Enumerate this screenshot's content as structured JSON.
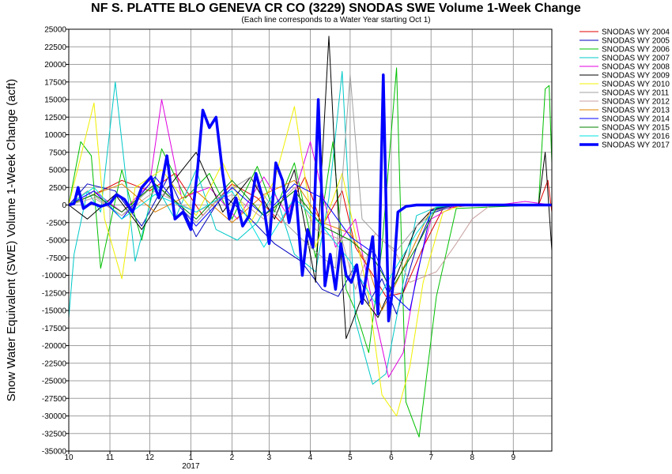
{
  "chart_data": {
    "type": "line",
    "title": "NF S. PLATTE BLO GENEVA CR CO (3229) SNODAS SWE Volume 1-Week Change",
    "subtitle": "(Each line corresponds to a Water Year starting Oct 1)",
    "ylabel": "Snow Water Equivalent (SWE) Volume 1-Week Change (acft)",
    "xlabel": "",
    "ylim": [
      -35000,
      25000
    ],
    "yticks": [
      25000,
      22500,
      20000,
      17500,
      15000,
      12500,
      10000,
      7500,
      5000,
      2500,
      0,
      -2500,
      -5000,
      -7500,
      -10000,
      -12500,
      -15000,
      -17500,
      -20000,
      -22500,
      -25000,
      -27500,
      -30000,
      -32500,
      -35000
    ],
    "xlim": [
      "2016-10-01",
      "2017-09-30"
    ],
    "x_ticks": [
      {
        "label": "10",
        "date": "2016-10-01"
      },
      {
        "label": "11",
        "date": "2016-11-01"
      },
      {
        "label": "12",
        "date": "2016-12-01"
      },
      {
        "label": "1",
        "date": "2017-01-01"
      },
      {
        "label": "2",
        "date": "2017-02-01"
      },
      {
        "label": "3",
        "date": "2017-03-01"
      },
      {
        "label": "4",
        "date": "2017-04-01"
      },
      {
        "label": "5",
        "date": "2017-05-01"
      },
      {
        "label": "6",
        "date": "2017-06-01"
      },
      {
        "label": "7",
        "date": "2017-07-01"
      },
      {
        "label": "8",
        "date": "2017-08-01"
      },
      {
        "label": "9",
        "date": "2017-09-01"
      }
    ],
    "year_label": "2017",
    "grid": true,
    "legend_position": "right",
    "series": [
      {
        "name": "SNODAS WY 2004",
        "color": "#e00000",
        "width": 1,
        "x": [
          "2016-10-01",
          "2016-10-20",
          "2016-11-10",
          "2016-12-01",
          "2016-12-20",
          "2017-01-10",
          "2017-02-01",
          "2017-02-20",
          "2017-03-10",
          "2017-03-28",
          "2017-04-10",
          "2017-04-25",
          "2017-05-05",
          "2017-05-15",
          "2017-05-28",
          "2017-06-10",
          "2017-06-25",
          "2017-07-10",
          "2017-08-01",
          "2017-09-20",
          "2017-09-27",
          "2017-09-30"
        ],
        "y": [
          0,
          1500,
          3500,
          2000,
          4500,
          -1500,
          3000,
          1000,
          -2500,
          4000,
          -3000,
          2000,
          -6000,
          -9000,
          -13000,
          -12500,
          -6000,
          -500,
          0,
          0,
          3500,
          -1000
        ]
      },
      {
        "name": "SNODAS WY 2005",
        "color": "#0000c0",
        "width": 1,
        "x": [
          "2016-10-01",
          "2016-10-15",
          "2016-11-05",
          "2016-11-25",
          "2016-12-15",
          "2017-01-05",
          "2017-01-25",
          "2017-02-15",
          "2017-03-05",
          "2017-03-25",
          "2017-04-10",
          "2017-04-22",
          "2017-05-05",
          "2017-05-15",
          "2017-05-25",
          "2017-06-05",
          "2017-06-20",
          "2017-07-01",
          "2017-07-20",
          "2017-09-30"
        ],
        "y": [
          0,
          3000,
          2000,
          -3000,
          4000,
          -4500,
          1500,
          -2000,
          -5500,
          -8000,
          -12000,
          -13000,
          -8500,
          -14000,
          -10500,
          -15500,
          -6000,
          -1200,
          0,
          0
        ]
      },
      {
        "name": "SNODAS WY 2006",
        "color": "#00c000",
        "width": 1,
        "x": [
          "2016-10-01",
          "2016-10-10",
          "2016-10-18",
          "2016-10-25",
          "2016-11-10",
          "2016-11-25",
          "2016-12-10",
          "2016-12-28",
          "2017-01-15",
          "2017-02-01",
          "2017-02-20",
          "2017-03-05",
          "2017-03-20",
          "2017-04-05",
          "2017-04-18",
          "2017-04-28",
          "2017-05-05",
          "2017-05-15",
          "2017-05-25",
          "2017-06-05",
          "2017-06-12",
          "2017-06-22",
          "2017-07-05",
          "2017-07-20",
          "2017-09-20",
          "2017-09-25",
          "2017-09-28",
          "2017-09-30"
        ],
        "y": [
          0,
          9000,
          7000,
          -9000,
          5000,
          -5000,
          8000,
          1000,
          4500,
          -2000,
          5500,
          -1000,
          6000,
          -7500,
          9000,
          -12000,
          -15000,
          -21000,
          -6000,
          19500,
          -28000,
          -33000,
          -13000,
          -500,
          0,
          16500,
          17000,
          6000
        ]
      },
      {
        "name": "SNODAS WY 2007",
        "color": "#00c8c8",
        "width": 1,
        "x": [
          "2016-10-01",
          "2016-10-05",
          "2016-10-15",
          "2016-10-25",
          "2016-11-05",
          "2016-11-20",
          "2016-12-05",
          "2016-12-20",
          "2017-01-05",
          "2017-01-20",
          "2017-02-05",
          "2017-02-20",
          "2017-03-05",
          "2017-03-20",
          "2017-04-05",
          "2017-04-15",
          "2017-04-25",
          "2017-05-05",
          "2017-05-18",
          "2017-05-28",
          "2017-06-08",
          "2017-06-20",
          "2017-07-05",
          "2017-07-25",
          "2017-09-30"
        ],
        "y": [
          -16000,
          -7000,
          2000,
          -1000,
          17500,
          -8000,
          3000,
          -2000,
          5000,
          -3500,
          -5000,
          -2500,
          2000,
          -7000,
          -9500,
          1000,
          19000,
          -16500,
          -25500,
          -24000,
          -13000,
          -1500,
          -300,
          0,
          0
        ]
      },
      {
        "name": "SNODAS WY 2008",
        "color": "#e000e0",
        "width": 1,
        "x": [
          "2016-10-01",
          "2016-10-20",
          "2016-11-10",
          "2016-12-01",
          "2016-12-10",
          "2016-12-25",
          "2017-01-15",
          "2017-02-05",
          "2017-02-25",
          "2017-03-15",
          "2017-04-01",
          "2017-04-20",
          "2017-05-05",
          "2017-05-20",
          "2017-05-30",
          "2017-06-10",
          "2017-06-20",
          "2017-07-01",
          "2017-07-20",
          "2017-08-20",
          "2017-09-10",
          "2017-09-30"
        ],
        "y": [
          0,
          2000,
          -1000,
          3000,
          15000,
          1000,
          2500,
          -2000,
          4000,
          -1500,
          9000,
          -6000,
          -2000,
          -16000,
          -24500,
          -21000,
          -10000,
          -2000,
          0,
          0,
          500,
          0
        ]
      },
      {
        "name": "SNODAS WY 2009",
        "color": "#000000",
        "width": 1,
        "x": [
          "2016-10-01",
          "2016-10-15",
          "2016-11-05",
          "2016-11-25",
          "2016-12-15",
          "2017-01-05",
          "2017-01-25",
          "2017-02-15",
          "2017-03-05",
          "2017-03-20",
          "2017-04-05",
          "2017-04-15",
          "2017-04-20",
          "2017-04-28",
          "2017-05-10",
          "2017-05-22",
          "2017-06-05",
          "2017-06-20",
          "2017-07-01",
          "2017-07-20",
          "2017-09-20",
          "2017-09-25",
          "2017-09-30"
        ],
        "y": [
          0,
          -2000,
          1500,
          -3500,
          2500,
          7500,
          -1000,
          4000,
          -2000,
          5000,
          -11000,
          24000,
          5000,
          -19000,
          -13000,
          -16000,
          -10000,
          -3000,
          -800,
          0,
          0,
          7500,
          -6500
        ]
      },
      {
        "name": "SNODAS WY 2010",
        "color": "#f0f000",
        "width": 1,
        "x": [
          "2016-10-01",
          "2016-10-20",
          "2016-10-28",
          "2016-11-10",
          "2016-11-20",
          "2016-12-10",
          "2017-01-05",
          "2017-01-25",
          "2017-02-15",
          "2017-03-05",
          "2017-03-20",
          "2017-04-05",
          "2017-04-25",
          "2017-05-15",
          "2017-05-25",
          "2017-06-05",
          "2017-06-15",
          "2017-06-25",
          "2017-07-10",
          "2017-07-25",
          "2017-09-30"
        ],
        "y": [
          0,
          14500,
          -2000,
          -10500,
          2500,
          5000,
          -1500,
          6000,
          -2500,
          3500,
          14000,
          -6000,
          4500,
          -13000,
          -27000,
          -30000,
          -23000,
          -11000,
          -1000,
          0,
          0
        ]
      },
      {
        "name": "SNODAS WY 2011",
        "color": "#a0a0a0",
        "width": 1,
        "x": [
          "2016-10-01",
          "2016-10-15",
          "2016-11-10",
          "2016-12-05",
          "2017-01-05",
          "2017-01-25",
          "2017-02-15",
          "2017-03-10",
          "2017-04-01",
          "2017-04-20",
          "2017-05-01",
          "2017-05-10",
          "2017-05-25",
          "2017-06-05",
          "2017-06-20",
          "2017-07-05",
          "2017-07-20",
          "2017-09-30"
        ],
        "y": [
          0,
          2000,
          -1500,
          3000,
          -2500,
          1500,
          4000,
          -2000,
          -6000,
          -9000,
          18500,
          -2000,
          -5000,
          -6500,
          -3000,
          -800,
          0,
          0
        ]
      },
      {
        "name": "SNODAS WY 2012",
        "color": "#c8a0a0",
        "width": 1,
        "x": [
          "2016-10-01",
          "2016-10-20",
          "2016-11-10",
          "2016-12-05",
          "2017-01-05",
          "2017-02-01",
          "2017-02-25",
          "2017-03-20",
          "2017-04-05",
          "2017-04-25",
          "2017-05-05",
          "2017-05-20",
          "2017-06-05",
          "2017-06-15",
          "2017-07-05",
          "2017-07-20",
          "2017-08-01",
          "2017-08-15",
          "2017-09-30"
        ],
        "y": [
          0,
          1000,
          -1500,
          2000,
          -1000,
          1500,
          -2000,
          2500,
          -3500,
          -5000,
          -12000,
          -4000,
          -7000,
          -11000,
          -9500,
          -5500,
          -2000,
          0,
          0
        ]
      },
      {
        "name": "SNODAS WY 2013",
        "color": "#e08000",
        "width": 1,
        "x": [
          "2016-10-01",
          "2016-10-20",
          "2016-11-10",
          "2016-12-05",
          "2017-01-05",
          "2017-02-01",
          "2017-02-25",
          "2017-03-20",
          "2017-04-10",
          "2017-05-01",
          "2017-05-15",
          "2017-05-25",
          "2017-06-05",
          "2017-06-20",
          "2017-07-01",
          "2017-07-20",
          "2017-09-30"
        ],
        "y": [
          0,
          1500,
          3000,
          -1000,
          2000,
          -2500,
          1500,
          3500,
          -2500,
          -4000,
          -9000,
          -15000,
          -11000,
          -5000,
          -600,
          0,
          0
        ]
      },
      {
        "name": "SNODAS WY 2014",
        "color": "#0000ff",
        "width": 1,
        "x": [
          "2016-10-01",
          "2016-10-20",
          "2016-11-10",
          "2016-12-05",
          "2017-01-05",
          "2017-02-01",
          "2017-02-25",
          "2017-03-20",
          "2017-04-10",
          "2017-05-01",
          "2017-05-20",
          "2017-06-01",
          "2017-06-15",
          "2017-07-01",
          "2017-07-20",
          "2017-09-30"
        ],
        "y": [
          0,
          2000,
          -2000,
          4000,
          -3000,
          2500,
          -1500,
          3000,
          1000,
          -4500,
          -7000,
          -12500,
          -15000,
          -700,
          0,
          0
        ]
      },
      {
        "name": "SNODAS WY 2015",
        "color": "#008000",
        "width": 1,
        "x": [
          "2016-10-01",
          "2016-10-20",
          "2016-11-10",
          "2016-12-05",
          "2017-01-05",
          "2017-02-01",
          "2017-02-25",
          "2017-03-20",
          "2017-04-10",
          "2017-05-01",
          "2017-05-20",
          "2017-06-01",
          "2017-06-20",
          "2017-07-05",
          "2017-07-20",
          "2017-09-30"
        ],
        "y": [
          0,
          1500,
          -1000,
          3000,
          -2000,
          3500,
          -1500,
          2000,
          -3000,
          -5000,
          -8000,
          -12000,
          -6000,
          -400,
          0,
          0
        ]
      },
      {
        "name": "SNODAS WY 2016",
        "color": "#00e0e0",
        "width": 1,
        "x": [
          "2016-10-01",
          "2016-10-20",
          "2016-11-10",
          "2016-12-05",
          "2017-01-05",
          "2017-02-01",
          "2017-02-25",
          "2017-03-20",
          "2017-04-10",
          "2017-05-01",
          "2017-05-20",
          "2017-06-01",
          "2017-06-20",
          "2017-07-05",
          "2017-07-20",
          "2017-09-30"
        ],
        "y": [
          0,
          2500,
          -2000,
          1500,
          -1000,
          2000,
          -6000,
          1000,
          -3000,
          -8000,
          -14000,
          -10000,
          -4000,
          -300,
          0,
          0
        ]
      },
      {
        "name": "SNODAS WY 2017",
        "color": "#0000ff",
        "width": 3.5,
        "x": [
          "2016-10-01",
          "2016-10-05",
          "2016-10-08",
          "2016-10-12",
          "2016-10-18",
          "2016-10-25",
          "2016-11-01",
          "2016-11-06",
          "2016-11-12",
          "2016-11-18",
          "2016-11-25",
          "2016-12-02",
          "2016-12-08",
          "2016-12-14",
          "2016-12-20",
          "2016-12-26",
          "2017-01-01",
          "2017-01-06",
          "2017-01-10",
          "2017-01-15",
          "2017-01-20",
          "2017-01-25",
          "2017-01-30",
          "2017-02-04",
          "2017-02-09",
          "2017-02-14",
          "2017-02-19",
          "2017-02-24",
          "2017-03-01",
          "2017-03-06",
          "2017-03-11",
          "2017-03-16",
          "2017-03-21",
          "2017-03-26",
          "2017-03-30",
          "2017-04-03",
          "2017-04-07",
          "2017-04-12",
          "2017-04-16",
          "2017-04-20",
          "2017-04-24",
          "2017-04-28",
          "2017-05-02",
          "2017-05-06",
          "2017-05-10",
          "2017-05-14",
          "2017-05-18",
          "2017-05-22",
          "2017-05-26",
          "2017-05-30",
          "2017-06-02",
          "2017-06-06",
          "2017-06-12",
          "2017-06-20",
          "2017-07-01",
          "2017-09-30"
        ],
        "y": [
          0,
          200,
          2500,
          -500,
          300,
          -200,
          200,
          1500,
          800,
          -1000,
          2500,
          4000,
          1000,
          7000,
          -2000,
          -1000,
          -3500,
          5000,
          13500,
          11000,
          12500,
          4500,
          -2000,
          1000,
          -3000,
          -1500,
          4500,
          1000,
          -5500,
          6000,
          3500,
          -2500,
          2000,
          -10000,
          -3500,
          -6000,
          15000,
          -11500,
          -7000,
          -12000,
          -5500,
          -10000,
          -11000,
          -8500,
          -14000,
          -9000,
          -4500,
          -15500,
          18500,
          -16500,
          -12000,
          -1000,
          -200,
          0,
          0,
          0
        ]
      }
    ]
  }
}
